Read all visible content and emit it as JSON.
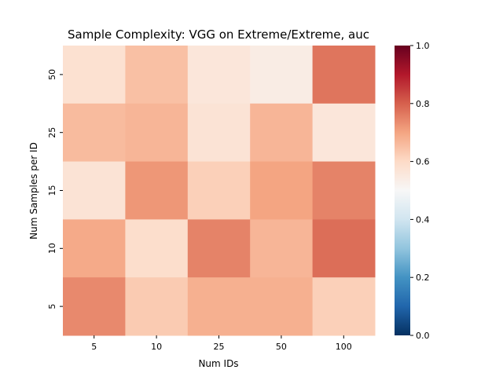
{
  "chart_data": {
    "type": "heatmap",
    "title": "Sample Complexity: VGG on Extreme/Extreme, auc",
    "xlabel": "Num IDs",
    "ylabel": "Num Samples per ID",
    "x_categories": [
      "5",
      "10",
      "25",
      "50",
      "100"
    ],
    "y_categories": [
      "50",
      "25",
      "15",
      "10",
      "5"
    ],
    "values": [
      [
        0.58,
        0.65,
        0.56,
        0.54,
        0.77
      ],
      [
        0.66,
        0.67,
        0.57,
        0.67,
        0.56
      ],
      [
        0.57,
        0.72,
        0.62,
        0.7,
        0.75
      ],
      [
        0.69,
        0.59,
        0.75,
        0.67,
        0.78
      ],
      [
        0.74,
        0.63,
        0.68,
        0.68,
        0.62
      ]
    ],
    "colorbar": {
      "colormap": "RdBu_r",
      "range": [
        0.0,
        1.0
      ],
      "ticks": [
        "0.0",
        "0.2",
        "0.4",
        "0.6",
        "0.8",
        "1.0"
      ]
    },
    "grid": false,
    "legend": "none"
  }
}
